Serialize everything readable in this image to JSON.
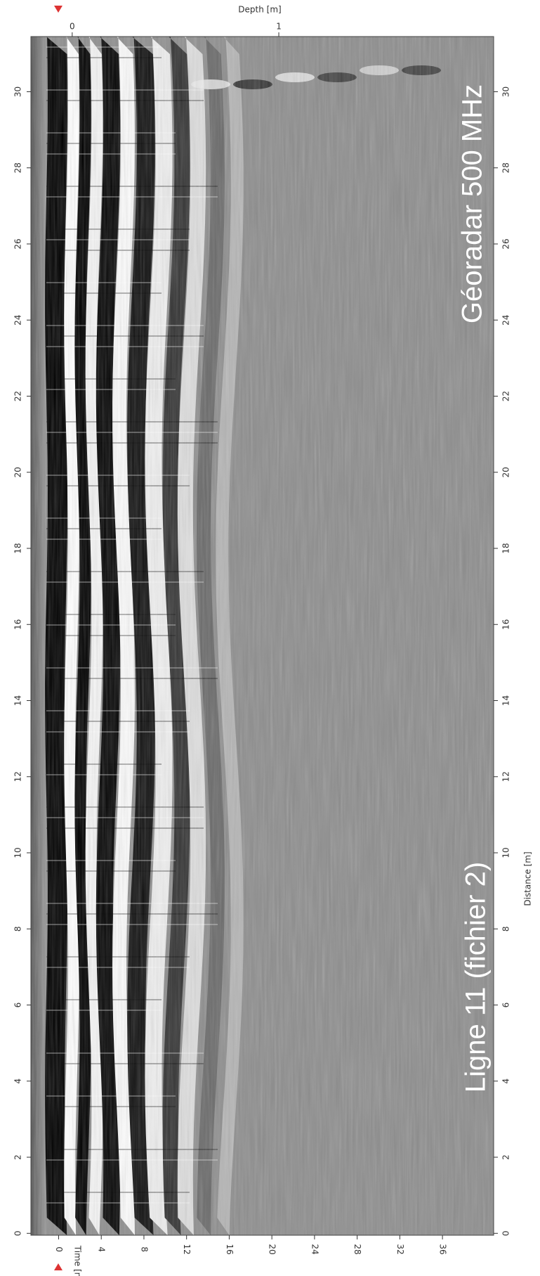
{
  "axes": {
    "depth": {
      "label": "Depth [m]",
      "lim": [
        -0.2,
        2.04
      ],
      "ticks": [
        0,
        1
      ]
    },
    "time": {
      "label": "Time [ns]",
      "lim": [
        -2.6,
        40.8
      ],
      "ticks": [
        0,
        4,
        8,
        12,
        16,
        20,
        24,
        28,
        32,
        36
      ]
    },
    "distance": {
      "label": "Distance [m]",
      "lim": [
        -0.05,
        31.45
      ],
      "ticks": [
        0,
        2,
        4,
        6,
        8,
        10,
        12,
        14,
        16,
        18,
        20,
        22,
        24,
        26,
        28,
        30
      ]
    }
  },
  "annotations": {
    "survey": "Géoradar 500 MHz",
    "profile": "Ligne 11 (fichier 2)"
  }
}
